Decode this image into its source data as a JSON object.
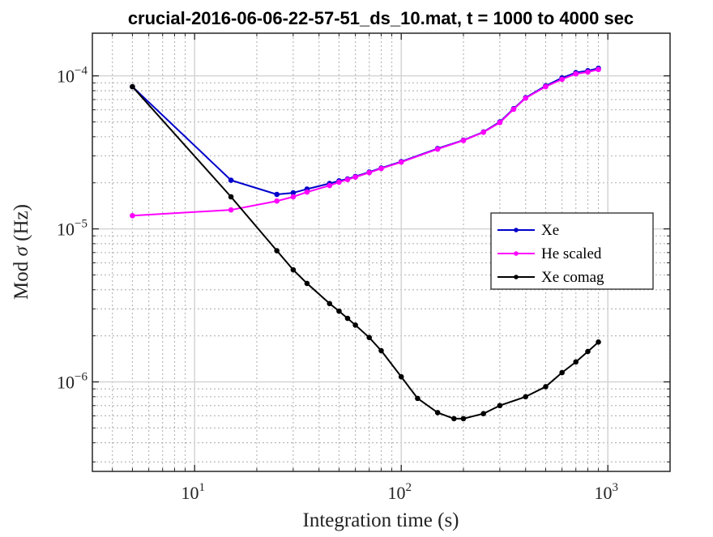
{
  "chart_data": {
    "type": "line",
    "title": "crucial-2016-06-06-22-57-51_ds_10.mat, t = 1000 to 4000 sec",
    "xlabel": "Integration time (s)",
    "ylabel": "Mod σ (Hz)",
    "ylabel_prefix": "Mod ",
    "ylabel_symbol": "σ",
    "ylabel_suffix": " (Hz)",
    "x_scale": "log",
    "y_scale": "log",
    "xlim": [
      3.2,
      2000
    ],
    "ylim": [
      2.6e-07,
      0.00019
    ],
    "x_ticks": [
      {
        "value": 10,
        "base": "10",
        "exp": "1"
      },
      {
        "value": 100,
        "base": "10",
        "exp": "2"
      },
      {
        "value": 1000,
        "base": "10",
        "exp": "3"
      }
    ],
    "y_ticks": [
      {
        "value": 1e-06,
        "base": "10",
        "exp": "−6"
      },
      {
        "value": 1e-05,
        "base": "10",
        "exp": "−5"
      },
      {
        "value": 0.0001,
        "base": "10",
        "exp": "−4"
      }
    ],
    "grid": true,
    "minor_grid": true,
    "legend_position": "right",
    "series": [
      {
        "name": "Xe",
        "color": "#0000cc",
        "x": [
          5,
          15,
          25,
          30,
          35,
          45,
          50,
          55,
          60,
          70,
          80,
          100,
          150,
          200,
          250,
          300,
          350,
          400,
          500,
          600,
          700,
          800,
          900
        ],
        "y": [
          8.5e-05,
          2.08e-05,
          1.68e-05,
          1.72e-05,
          1.82e-05,
          1.98e-05,
          2.06e-05,
          2.12e-05,
          2.2e-05,
          2.35e-05,
          2.5e-05,
          2.75e-05,
          3.35e-05,
          3.8e-05,
          4.3e-05,
          5e-05,
          6.1e-05,
          7.2e-05,
          8.6e-05,
          9.7e-05,
          0.000105,
          0.000108,
          0.000112
        ]
      },
      {
        "name": "He scaled",
        "color": "#ff00ff",
        "x": [
          5,
          15,
          25,
          30,
          35,
          45,
          50,
          55,
          60,
          70,
          80,
          100,
          150,
          200,
          250,
          300,
          350,
          400,
          500,
          600,
          700,
          800,
          900
        ],
        "y": [
          1.22e-05,
          1.33e-05,
          1.52e-05,
          1.62e-05,
          1.74e-05,
          1.92e-05,
          2.02e-05,
          2.1e-05,
          2.18e-05,
          2.33e-05,
          2.48e-05,
          2.73e-05,
          3.32e-05,
          3.78e-05,
          4.28e-05,
          4.95e-05,
          6.05e-05,
          7.15e-05,
          8.5e-05,
          9.5e-05,
          0.000103,
          0.000106,
          0.00011
        ]
      },
      {
        "name": "Xe comag",
        "color": "#000000",
        "x": [
          5,
          15,
          25,
          30,
          35,
          45,
          50,
          55,
          60,
          70,
          80,
          100,
          120,
          150,
          180,
          200,
          250,
          300,
          400,
          500,
          600,
          700,
          800,
          900
        ],
        "y": [
          8.5e-05,
          1.62e-05,
          7.2e-06,
          5.4e-06,
          4.4e-06,
          3.25e-06,
          2.9e-06,
          2.6e-06,
          2.35e-06,
          1.95e-06,
          1.6e-06,
          1.08e-06,
          7.8e-07,
          6.3e-07,
          5.75e-07,
          5.75e-07,
          6.2e-07,
          7e-07,
          8e-07,
          9.3e-07,
          1.15e-06,
          1.35e-06,
          1.58e-06,
          1.82e-06
        ]
      }
    ]
  }
}
